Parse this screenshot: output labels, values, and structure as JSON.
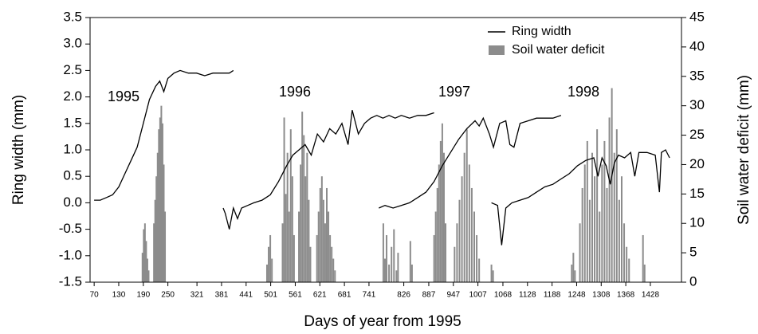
{
  "chart_data": {
    "type": "combo",
    "xlabel": "Days of year from 1995",
    "ylabel": "Ring width (mm)",
    "y2label": "Soil water deficit (mm)",
    "annotations": [
      "1995",
      "1996",
      "1997",
      "1998"
    ],
    "xlim": [
      60,
      1504
    ],
    "xticks": [
      70,
      130,
      190,
      250,
      321,
      381,
      441,
      501,
      561,
      621,
      681,
      741,
      826,
      887,
      947,
      1007,
      1068,
      1128,
      1188,
      1248,
      1308,
      1368,
      1428
    ],
    "ylim": [
      -1.5,
      3.5
    ],
    "yticks": [
      -1.5,
      {
        "value": -1,
        "label": "-1.0"
      },
      -0.5,
      {
        "value": 0,
        "label": "0.0"
      },
      0.5,
      {
        "value": 1,
        "label": "1.0"
      },
      1.5,
      {
        "value": 2,
        "label": "2.0"
      },
      2.5,
      {
        "value": 3,
        "label": "3.0"
      },
      3.5
    ],
    "y2lim": [
      0,
      45
    ],
    "y2ticks": [
      0,
      5,
      10,
      15,
      20,
      25,
      30,
      35,
      40,
      45
    ],
    "legend": "upper right",
    "series": [
      {
        "name": "Ring width",
        "type": "line",
        "color": "#000000",
        "x": [
          70,
          85,
          100,
          115,
          130,
          145,
          160,
          175,
          190,
          205,
          220,
          230,
          240,
          250,
          265,
          280,
          300,
          320,
          340,
          360,
          380,
          400,
          410,
          382,
          385,
          390,
          400,
          410,
          420,
          430,
          445,
          460,
          480,
          500,
          520,
          540,
          555,
          570,
          585,
          600,
          615,
          630,
          645,
          660,
          675,
          690,
          700,
          715,
          730,
          745,
          760,
          775,
          790,
          805,
          820,
          840,
          860,
          880,
          900,
          762,
          765,
          780,
          800,
          820,
          840,
          860,
          880,
          900,
          920,
          940,
          960,
          980,
          1000,
          1010,
          1020,
          1035,
          1045,
          1060,
          1075,
          1085,
          1095,
          1110,
          1130,
          1150,
          1170,
          1190,
          1210,
          1038,
          1040,
          1055,
          1065,
          1075,
          1090,
          1110,
          1130,
          1150,
          1170,
          1190,
          1210,
          1230,
          1250,
          1270,
          1290,
          1300,
          1310,
          1320,
          1330,
          1340,
          1350,
          1365,
          1380,
          1390,
          1400,
          1420,
          1440,
          1450,
          1455,
          1465,
          1475
        ],
        "values": [
          0.05,
          0.05,
          0.1,
          0.15,
          0.3,
          0.55,
          0.8,
          1.05,
          1.5,
          1.95,
          2.2,
          2.3,
          2.1,
          2.35,
          2.45,
          2.5,
          2.45,
          2.45,
          2.4,
          2.45,
          2.45,
          2.45,
          2.5,
          null,
          -0.1,
          -0.2,
          -0.5,
          -0.1,
          -0.3,
          -0.1,
          -0.05,
          0.0,
          0.05,
          0.15,
          0.4,
          0.7,
          0.9,
          1.0,
          1.1,
          0.9,
          1.3,
          1.15,
          1.4,
          1.3,
          1.5,
          1.1,
          1.75,
          1.3,
          1.5,
          1.6,
          1.65,
          1.6,
          1.65,
          1.6,
          1.65,
          1.6,
          1.65,
          1.65,
          1.7,
          null,
          -0.1,
          -0.05,
          -0.1,
          -0.05,
          0.0,
          0.1,
          0.2,
          0.4,
          0.7,
          0.95,
          1.2,
          1.4,
          1.55,
          1.45,
          1.6,
          1.3,
          1.05,
          1.5,
          1.55,
          1.1,
          1.05,
          1.5,
          1.55,
          1.6,
          1.6,
          1.6,
          1.65,
          null,
          0.0,
          -0.05,
          -0.8,
          -0.1,
          0.0,
          0.05,
          0.1,
          0.2,
          0.3,
          0.35,
          0.45,
          0.55,
          0.7,
          0.8,
          0.85,
          0.5,
          0.85,
          0.7,
          0.35,
          0.75,
          0.9,
          0.85,
          0.95,
          0.5,
          0.95,
          0.95,
          0.9,
          0.2,
          0.95,
          1.0,
          0.85
        ]
      },
      {
        "name": "Soil water deficit",
        "type": "bar",
        "axis": "y2",
        "color": "#8c8c8c",
        "x": [
          188,
          191,
          194,
          197,
          200,
          203,
          216,
          219,
          222,
          225,
          228,
          231,
          234,
          237,
          240,
          243,
          492,
          496,
          500,
          504,
          530,
          534,
          538,
          542,
          546,
          550,
          554,
          558,
          570,
          574,
          578,
          582,
          586,
          590,
          594,
          598,
          614,
          618,
          622,
          626,
          630,
          634,
          638,
          642,
          646,
          650,
          654,
          658,
          776,
          780,
          784,
          790,
          796,
          802,
          808,
          812,
          842,
          846,
          900,
          904,
          908,
          912,
          916,
          920,
          924,
          928,
          950,
          956,
          962,
          968,
          974,
          980,
          986,
          992,
          998,
          1004,
          1010,
          1040,
          1044,
          1236,
          1240,
          1244,
          1256,
          1262,
          1268,
          1274,
          1280,
          1286,
          1292,
          1298,
          1304,
          1310,
          1316,
          1322,
          1328,
          1334,
          1340,
          1346,
          1352,
          1358,
          1364,
          1370,
          1376,
          1410,
          1414
        ],
        "values": [
          5,
          9,
          10,
          7,
          4,
          2,
          10,
          14,
          18,
          22,
          26,
          28,
          30,
          27,
          20,
          12,
          3,
          6,
          8,
          4,
          10,
          28,
          15,
          22,
          12,
          26,
          18,
          8,
          12,
          20,
          29,
          25,
          18,
          22,
          14,
          6,
          8,
          12,
          16,
          18,
          14,
          10,
          16,
          12,
          8,
          6,
          4,
          2,
          10,
          4,
          8,
          3,
          6,
          9,
          2,
          5,
          7,
          3,
          8,
          12,
          16,
          20,
          24,
          27,
          22,
          10,
          6,
          10,
          14,
          18,
          22,
          26,
          20,
          16,
          12,
          8,
          4,
          3,
          2,
          3,
          5,
          2,
          10,
          16,
          20,
          24,
          14,
          22,
          18,
          26,
          12,
          20,
          24,
          16,
          28,
          33,
          22,
          26,
          14,
          18,
          10,
          6,
          4,
          8,
          3
        ]
      }
    ]
  }
}
